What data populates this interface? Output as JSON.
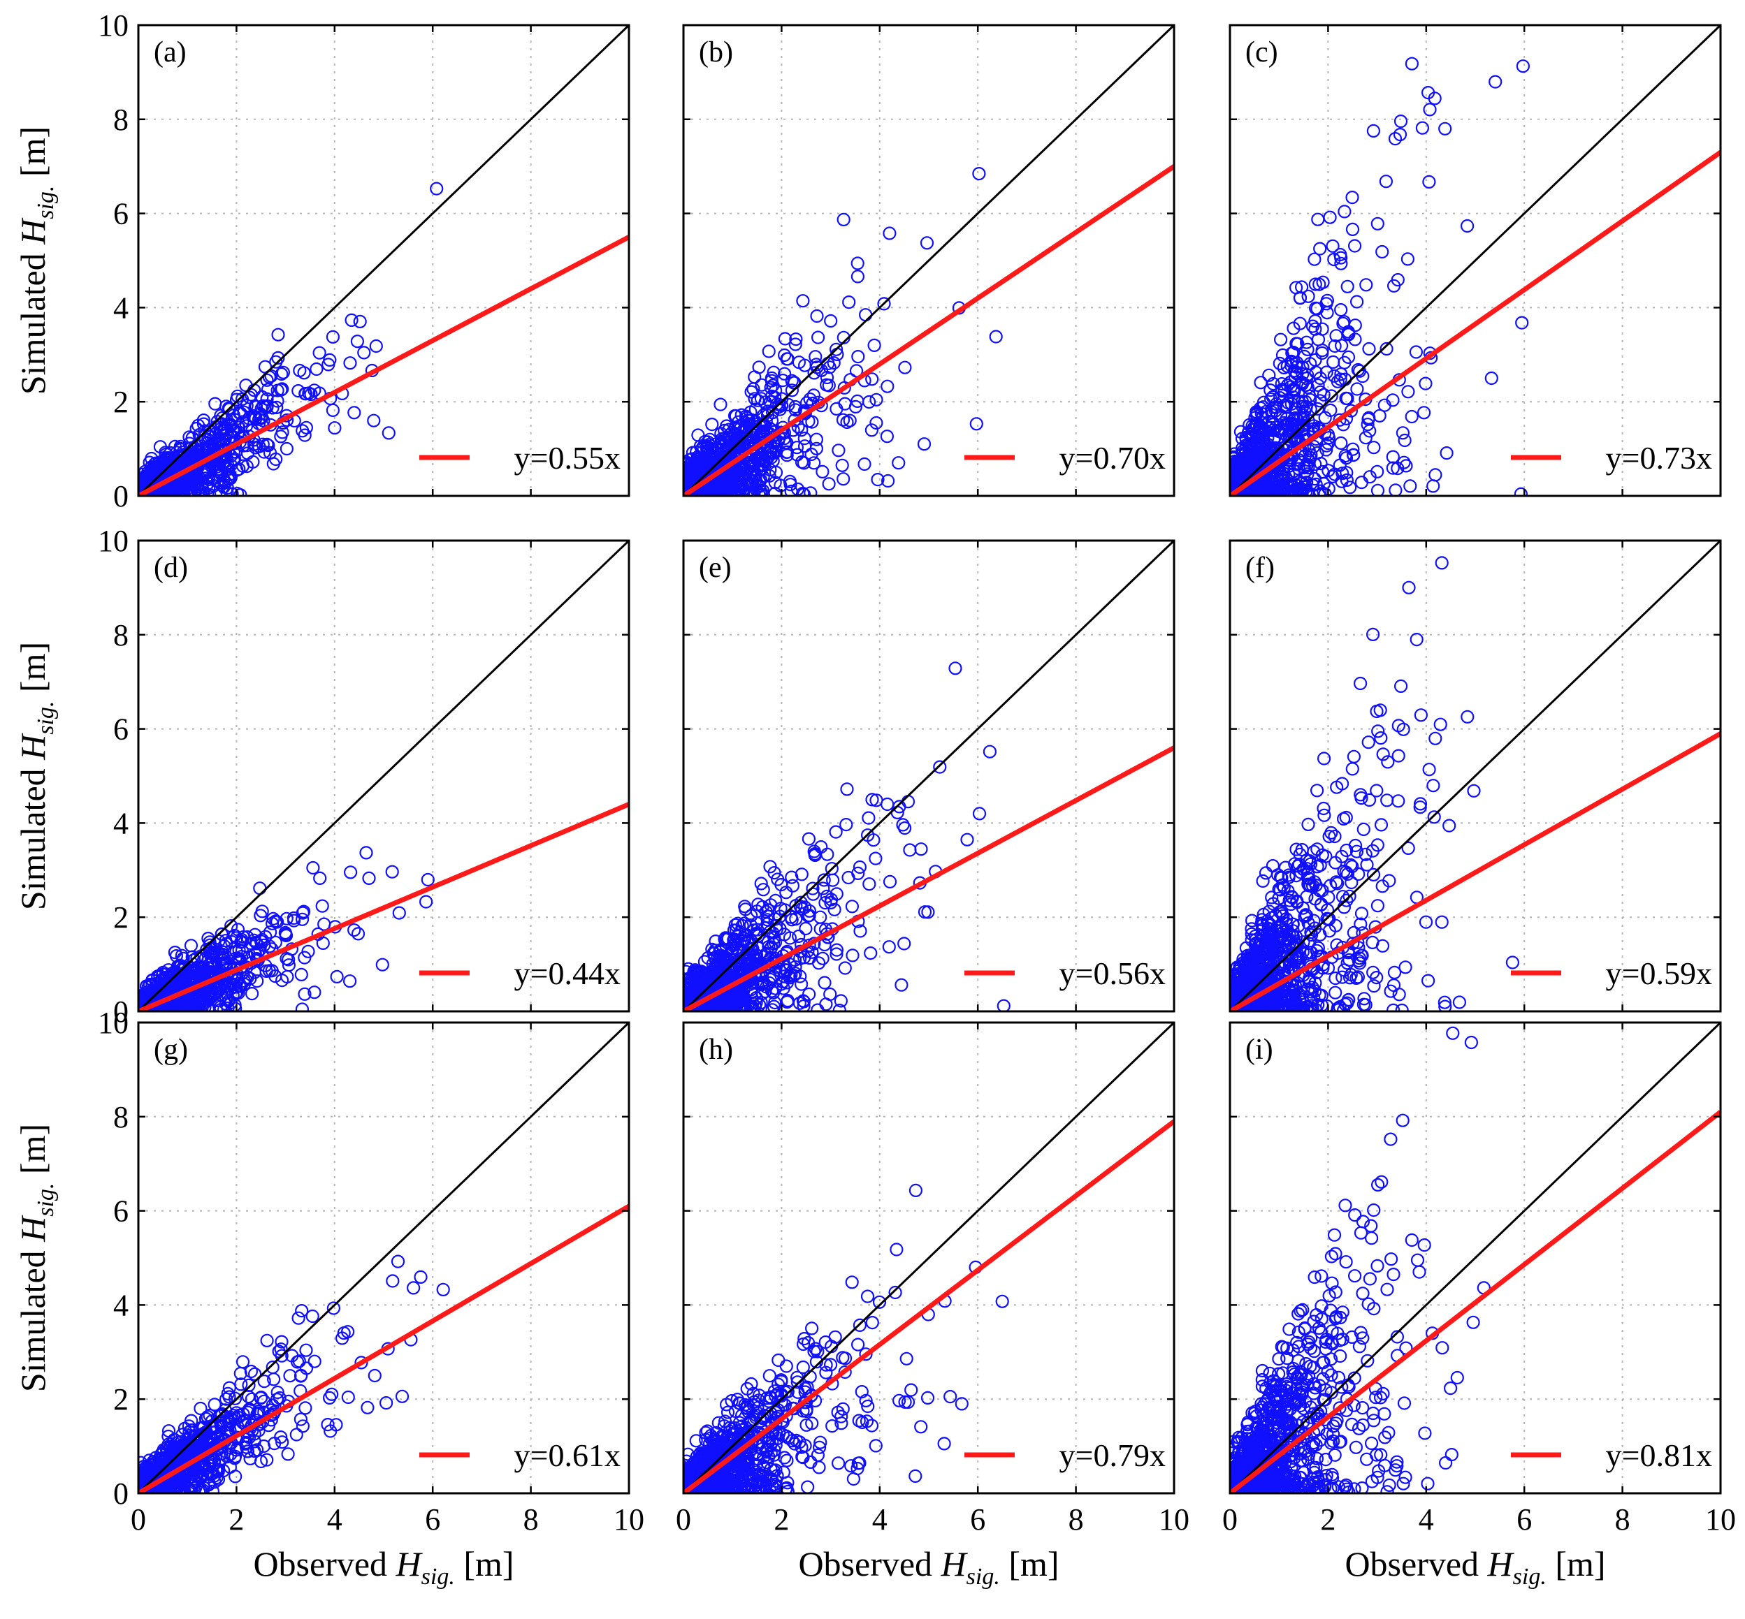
{
  "colors": {
    "points": "#1010ff",
    "fit_line": "#ff1a1a",
    "identity_line": "#000000",
    "grid": "#b5b5b5"
  },
  "axis_titles": {
    "y_prefix": "Simulated",
    "x_prefix": "Observed",
    "symbol": "H",
    "subscript": "sig.",
    "unit": "[m]"
  },
  "chart_data": [
    {
      "type": "scatter",
      "panel": "(a)",
      "fit_label": "y=0.55x",
      "slope": 0.55,
      "spread": "low",
      "xlim": [
        0,
        10
      ],
      "ylim": [
        0,
        10
      ],
      "x_ticks": [
        0,
        2,
        4,
        6,
        8,
        10
      ],
      "y_ticks": [
        0,
        2,
        4,
        6,
        8,
        10
      ],
      "grid": true,
      "identity_line": true,
      "legend_position": "bottom-right"
    },
    {
      "type": "scatter",
      "panel": "(b)",
      "fit_label": "y=0.70x",
      "slope": 0.7,
      "spread": "mid",
      "xlim": [
        0,
        10
      ],
      "ylim": [
        0,
        10
      ],
      "x_ticks": [
        0,
        2,
        4,
        6,
        8,
        10
      ],
      "y_ticks": [
        0,
        2,
        4,
        6,
        8,
        10
      ],
      "grid": true,
      "identity_line": true,
      "legend_position": "bottom-right"
    },
    {
      "type": "scatter",
      "panel": "(c)",
      "fit_label": "y=0.73x",
      "slope": 0.73,
      "spread": "high",
      "xlim": [
        0,
        10
      ],
      "ylim": [
        0,
        10
      ],
      "x_ticks": [
        0,
        2,
        4,
        6,
        8,
        10
      ],
      "y_ticks": [
        0,
        2,
        4,
        6,
        8,
        10
      ],
      "grid": true,
      "identity_line": true,
      "legend_position": "bottom-right"
    },
    {
      "type": "scatter",
      "panel": "(d)",
      "fit_label": "y=0.44x",
      "slope": 0.44,
      "spread": "low",
      "xlim": [
        0,
        10
      ],
      "ylim": [
        0,
        10
      ],
      "x_ticks": [
        0,
        2,
        4,
        6,
        8,
        10
      ],
      "y_ticks": [
        0,
        2,
        4,
        6,
        8,
        10
      ],
      "grid": true,
      "identity_line": true,
      "legend_position": "bottom-right"
    },
    {
      "type": "scatter",
      "panel": "(e)",
      "fit_label": "y=0.56x",
      "slope": 0.56,
      "spread": "mid",
      "xlim": [
        0,
        10
      ],
      "ylim": [
        0,
        10
      ],
      "x_ticks": [
        0,
        2,
        4,
        6,
        8,
        10
      ],
      "y_ticks": [
        0,
        2,
        4,
        6,
        8,
        10
      ],
      "grid": true,
      "identity_line": true,
      "legend_position": "bottom-right"
    },
    {
      "type": "scatter",
      "panel": "(f)",
      "fit_label": "y=0.59x",
      "slope": 0.59,
      "spread": "high",
      "xlim": [
        0,
        10
      ],
      "ylim": [
        0,
        10
      ],
      "x_ticks": [
        0,
        2,
        4,
        6,
        8,
        10
      ],
      "y_ticks": [
        0,
        2,
        4,
        6,
        8,
        10
      ],
      "grid": true,
      "identity_line": true,
      "legend_position": "bottom-right"
    },
    {
      "type": "scatter",
      "panel": "(g)",
      "fit_label": "y=0.61x",
      "slope": 0.61,
      "spread": "low",
      "xlim": [
        0,
        10
      ],
      "ylim": [
        0,
        10
      ],
      "x_ticks": [
        0,
        2,
        4,
        6,
        8,
        10
      ],
      "y_ticks": [
        0,
        2,
        4,
        6,
        8,
        10
      ],
      "grid": true,
      "identity_line": true,
      "legend_position": "bottom-right"
    },
    {
      "type": "scatter",
      "panel": "(h)",
      "fit_label": "y=0.79x",
      "slope": 0.79,
      "spread": "mid",
      "xlim": [
        0,
        10
      ],
      "ylim": [
        0,
        10
      ],
      "x_ticks": [
        0,
        2,
        4,
        6,
        8,
        10
      ],
      "y_ticks": [
        0,
        2,
        4,
        6,
        8,
        10
      ],
      "grid": true,
      "identity_line": true,
      "legend_position": "bottom-right"
    },
    {
      "type": "scatter",
      "panel": "(i)",
      "fit_label": "y=0.81x",
      "slope": 0.81,
      "spread": "high",
      "xlim": [
        0,
        10
      ],
      "ylim": [
        0,
        10
      ],
      "x_ticks": [
        0,
        2,
        4,
        6,
        8,
        10
      ],
      "y_ticks": [
        0,
        2,
        4,
        6,
        8,
        10
      ],
      "grid": true,
      "identity_line": true,
      "legend_position": "bottom-right"
    }
  ]
}
